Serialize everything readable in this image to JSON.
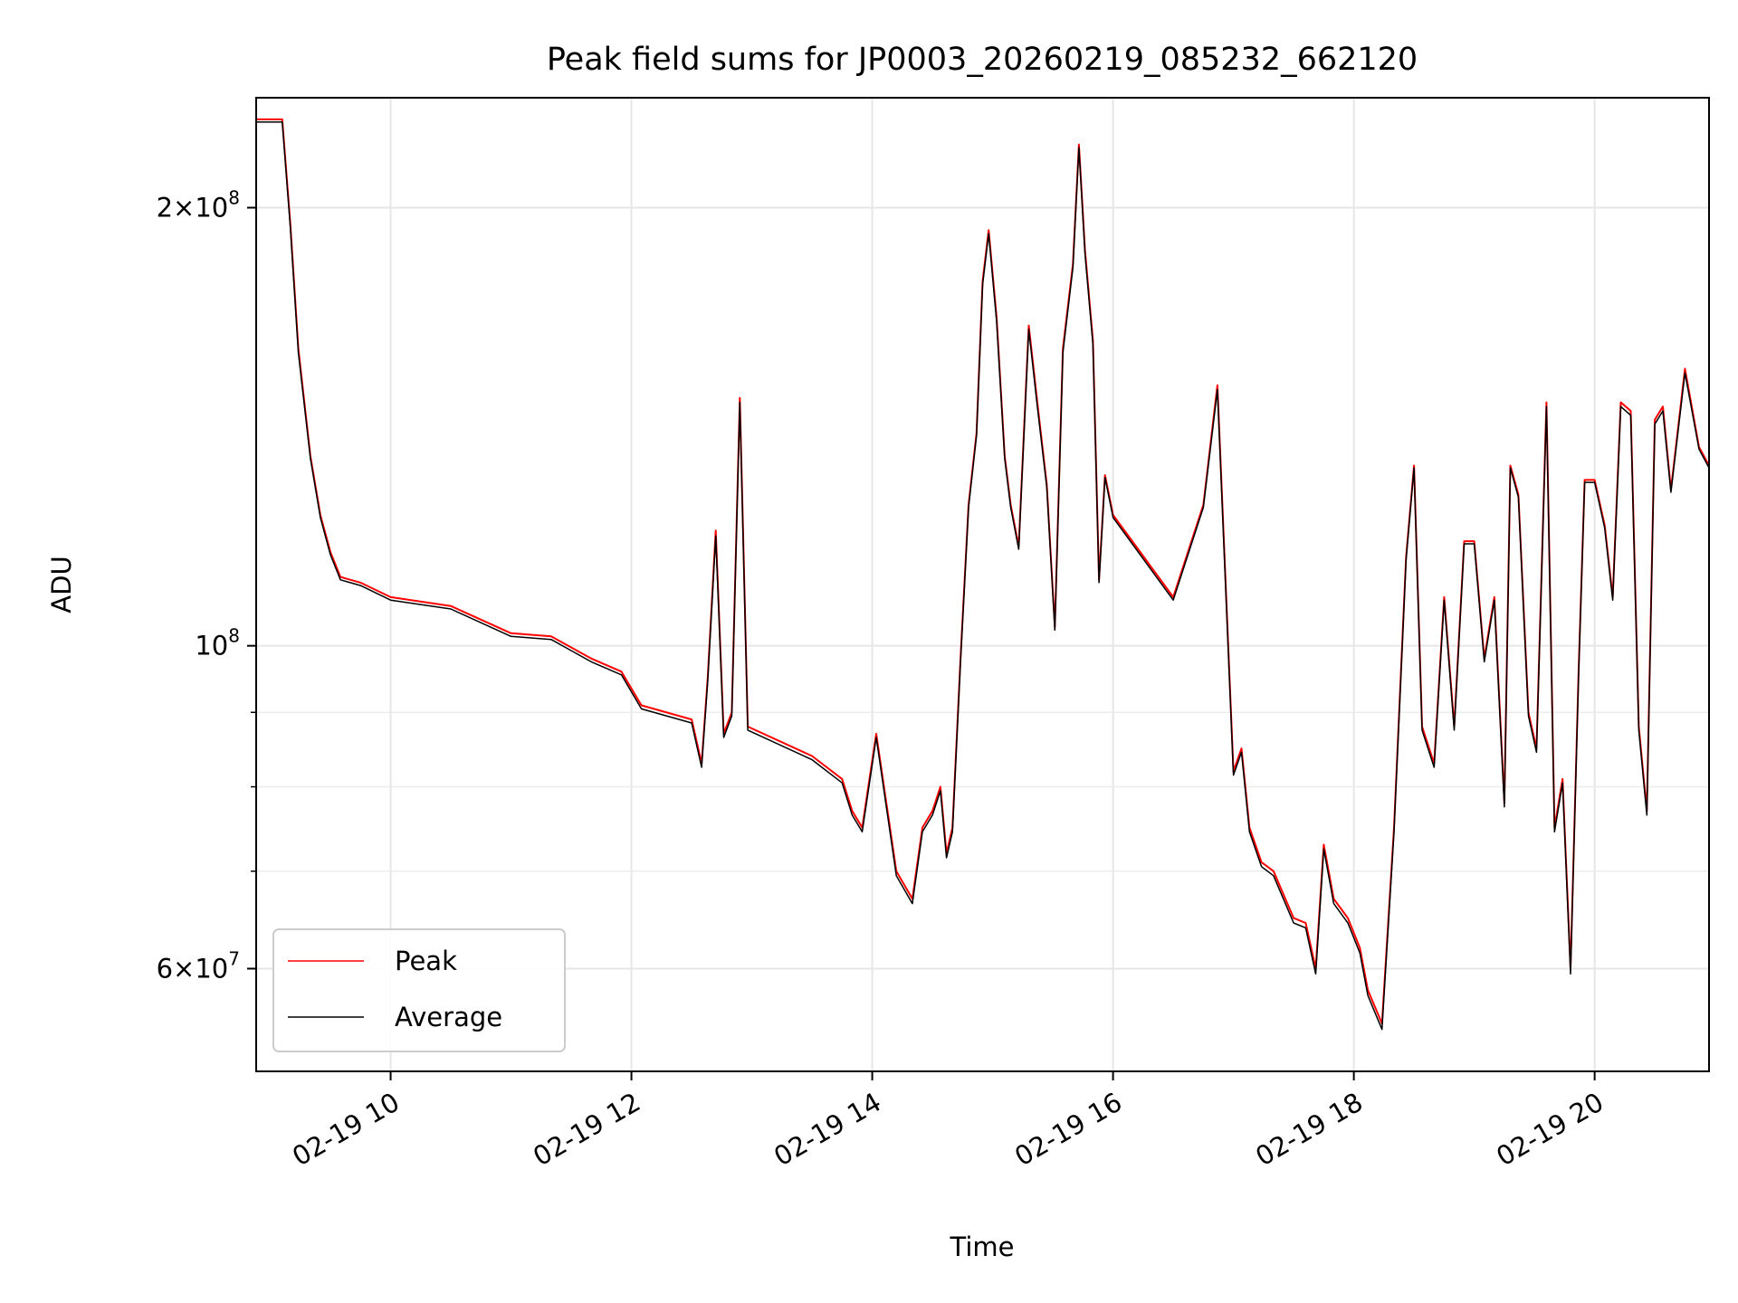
{
  "chart_data": {
    "type": "line",
    "title": "Peak field sums for JP0003_20260219_085232_662120",
    "xlabel": "Time",
    "ylabel": "ADU",
    "y_scale": "log",
    "xlim": [
      "2026-02-19 08:53",
      "2026-02-19 20:57"
    ],
    "ylim": [
      51000000,
      238000000
    ],
    "grid": true,
    "legend_position": "bottom-left",
    "x_ticks": [
      {
        "value": "2026-02-19 10:00",
        "label": "02-19 10"
      },
      {
        "value": "2026-02-19 12:00",
        "label": "02-19 12"
      },
      {
        "value": "2026-02-19 14:00",
        "label": "02-19 14"
      },
      {
        "value": "2026-02-19 16:00",
        "label": "02-19 16"
      },
      {
        "value": "2026-02-19 18:00",
        "label": "02-19 18"
      },
      {
        "value": "2026-02-19 20:00",
        "label": "02-19 20"
      }
    ],
    "y_ticks": [
      {
        "value": 200000000,
        "mantissa": "2",
        "exponent": "8"
      },
      {
        "value": 100000000,
        "mantissa": "",
        "exponent": "8"
      },
      {
        "value": 60000000,
        "mantissa": "6",
        "exponent": "7"
      }
    ],
    "y_minor_ticks": [
      70000000,
      80000000,
      90000000,
      300000000
    ],
    "series": [
      {
        "name": "Peak",
        "color": "#ff0000",
        "x": [
          "2026-02-19 08:53",
          "2026-02-19 09:03",
          "2026-02-19 09:06",
          "2026-02-19 09:10",
          "2026-02-19 09:14",
          "2026-02-19 09:20",
          "2026-02-19 09:25",
          "2026-02-19 09:30",
          "2026-02-19 09:35",
          "2026-02-19 09:45",
          "2026-02-19 10:00",
          "2026-02-19 10:30",
          "2026-02-19 11:00",
          "2026-02-19 11:20",
          "2026-02-19 11:40",
          "2026-02-19 11:55",
          "2026-02-19 12:05",
          "2026-02-19 12:30",
          "2026-02-19 12:35",
          "2026-02-19 12:38",
          "2026-02-19 12:42",
          "2026-02-19 12:46",
          "2026-02-19 12:50",
          "2026-02-19 12:54",
          "2026-02-19 12:58",
          "2026-02-19 13:30",
          "2026-02-19 13:45",
          "2026-02-19 13:50",
          "2026-02-19 13:55",
          "2026-02-19 14:02",
          "2026-02-19 14:12",
          "2026-02-19 14:20",
          "2026-02-19 14:25",
          "2026-02-19 14:30",
          "2026-02-19 14:34",
          "2026-02-19 14:37",
          "2026-02-19 14:40",
          "2026-02-19 14:44",
          "2026-02-19 14:48",
          "2026-02-19 14:52",
          "2026-02-19 14:55",
          "2026-02-19 14:58",
          "2026-02-19 15:02",
          "2026-02-19 15:06",
          "2026-02-19 15:09",
          "2026-02-19 15:13",
          "2026-02-19 15:18",
          "2026-02-19 15:22",
          "2026-02-19 15:27",
          "2026-02-19 15:31",
          "2026-02-19 15:35",
          "2026-02-19 15:40",
          "2026-02-19 15:43",
          "2026-02-19 15:46",
          "2026-02-19 15:50",
          "2026-02-19 15:53",
          "2026-02-19 15:56",
          "2026-02-19 16:00",
          "2026-02-19 16:30",
          "2026-02-19 16:45",
          "2026-02-19 16:52",
          "2026-02-19 17:00",
          "2026-02-19 17:04",
          "2026-02-19 17:08",
          "2026-02-19 17:14",
          "2026-02-19 17:20",
          "2026-02-19 17:30",
          "2026-02-19 17:36",
          "2026-02-19 17:41",
          "2026-02-19 17:45",
          "2026-02-19 17:50",
          "2026-02-19 17:57",
          "2026-02-19 18:03",
          "2026-02-19 18:07",
          "2026-02-19 18:14",
          "2026-02-19 18:20",
          "2026-02-19 18:26",
          "2026-02-19 18:30",
          "2026-02-19 18:34",
          "2026-02-19 18:40",
          "2026-02-19 18:45",
          "2026-02-19 18:50",
          "2026-02-19 18:55",
          "2026-02-19 19:00",
          "2026-02-19 19:05",
          "2026-02-19 19:10",
          "2026-02-19 19:15",
          "2026-02-19 19:18",
          "2026-02-19 19:22",
          "2026-02-19 19:27",
          "2026-02-19 19:31",
          "2026-02-19 19:36",
          "2026-02-19 19:40",
          "2026-02-19 19:44",
          "2026-02-19 19:48",
          "2026-02-19 19:52",
          "2026-02-19 19:55",
          "2026-02-19 20:00",
          "2026-02-19 20:05",
          "2026-02-19 20:09",
          "2026-02-19 20:13",
          "2026-02-19 20:18",
          "2026-02-19 20:22",
          "2026-02-19 20:26",
          "2026-02-19 20:30",
          "2026-02-19 20:34",
          "2026-02-19 20:38",
          "2026-02-19 20:45",
          "2026-02-19 20:52",
          "2026-02-19 20:57"
        ],
        "y": [
          230000000,
          230000000,
          230000000,
          195000000,
          160000000,
          135000000,
          123000000,
          116000000,
          111500000,
          110500000,
          108000000,
          106500000,
          102000000,
          101500000,
          98000000,
          96000000,
          91000000,
          89000000,
          83000000,
          95000000,
          120000000,
          87000000,
          90000000,
          148000000,
          88000000,
          84000000,
          81000000,
          77000000,
          75000000,
          87000000,
          70000000,
          67000000,
          75000000,
          77000000,
          80000000,
          72000000,
          75000000,
          98000000,
          125000000,
          140000000,
          178000000,
          193000000,
          168000000,
          135000000,
          125000000,
          117000000,
          166000000,
          148000000,
          129000000,
          103000000,
          160000000,
          183000000,
          221000000,
          187000000,
          162000000,
          111000000,
          131000000,
          123000000,
          108000000,
          125000000,
          151000000,
          82000000,
          85000000,
          75000000,
          71000000,
          70000000,
          65000000,
          64500000,
          60000000,
          73000000,
          67000000,
          65000000,
          62000000,
          58000000,
          55000000,
          75000000,
          115000000,
          133000000,
          88000000,
          83000000,
          108000000,
          88000000,
          118000000,
          118000000,
          98000000,
          108000000,
          78000000,
          133000000,
          127000000,
          90000000,
          85000000,
          147000000,
          75000000,
          81000000,
          60000000,
          96000000,
          130000000,
          130000000,
          121000000,
          108000000,
          147000000,
          145000000,
          88000000,
          77000000,
          143000000,
          146000000,
          128000000,
          155000000,
          137000000,
          133000000
        ],
        "note": "trace approximated from image"
      },
      {
        "name": "Average",
        "color": "#000000",
        "x": [
          "2026-02-19 08:53",
          "2026-02-19 09:03",
          "2026-02-19 09:06",
          "2026-02-19 09:10",
          "2026-02-19 09:14",
          "2026-02-19 09:20",
          "2026-02-19 09:25",
          "2026-02-19 09:30",
          "2026-02-19 09:35",
          "2026-02-19 09:45",
          "2026-02-19 10:00",
          "2026-02-19 10:30",
          "2026-02-19 11:00",
          "2026-02-19 11:20",
          "2026-02-19 11:40",
          "2026-02-19 11:55",
          "2026-02-19 12:05",
          "2026-02-19 12:30",
          "2026-02-19 12:35",
          "2026-02-19 12:38",
          "2026-02-19 12:42",
          "2026-02-19 12:46",
          "2026-02-19 12:50",
          "2026-02-19 12:54",
          "2026-02-19 12:58",
          "2026-02-19 13:30",
          "2026-02-19 13:45",
          "2026-02-19 13:50",
          "2026-02-19 13:55",
          "2026-02-19 14:02",
          "2026-02-19 14:12",
          "2026-02-19 14:20",
          "2026-02-19 14:25",
          "2026-02-19 14:30",
          "2026-02-19 14:34",
          "2026-02-19 14:37",
          "2026-02-19 14:40",
          "2026-02-19 14:44",
          "2026-02-19 14:48",
          "2026-02-19 14:52",
          "2026-02-19 14:55",
          "2026-02-19 14:58",
          "2026-02-19 15:02",
          "2026-02-19 15:06",
          "2026-02-19 15:09",
          "2026-02-19 15:13",
          "2026-02-19 15:18",
          "2026-02-19 15:22",
          "2026-02-19 15:27",
          "2026-02-19 15:31",
          "2026-02-19 15:35",
          "2026-02-19 15:40",
          "2026-02-19 15:43",
          "2026-02-19 15:46",
          "2026-02-19 15:50",
          "2026-02-19 15:53",
          "2026-02-19 15:56",
          "2026-02-19 16:00",
          "2026-02-19 16:30",
          "2026-02-19 16:45",
          "2026-02-19 16:52",
          "2026-02-19 17:00",
          "2026-02-19 17:04",
          "2026-02-19 17:08",
          "2026-02-19 17:14",
          "2026-02-19 17:20",
          "2026-02-19 17:30",
          "2026-02-19 17:36",
          "2026-02-19 17:41",
          "2026-02-19 17:45",
          "2026-02-19 17:50",
          "2026-02-19 17:57",
          "2026-02-19 18:03",
          "2026-02-19 18:07",
          "2026-02-19 18:14",
          "2026-02-19 18:20",
          "2026-02-19 18:26",
          "2026-02-19 18:30",
          "2026-02-19 18:34",
          "2026-02-19 18:40",
          "2026-02-19 18:45",
          "2026-02-19 18:50",
          "2026-02-19 18:55",
          "2026-02-19 19:00",
          "2026-02-19 19:05",
          "2026-02-19 19:10",
          "2026-02-19 19:15",
          "2026-02-19 19:18",
          "2026-02-19 19:22",
          "2026-02-19 19:27",
          "2026-02-19 19:31",
          "2026-02-19 19:36",
          "2026-02-19 19:40",
          "2026-02-19 19:44",
          "2026-02-19 19:48",
          "2026-02-19 19:52",
          "2026-02-19 19:55",
          "2026-02-19 20:00",
          "2026-02-19 20:05",
          "2026-02-19 20:09",
          "2026-02-19 20:13",
          "2026-02-19 20:18",
          "2026-02-19 20:22",
          "2026-02-19 20:26",
          "2026-02-19 20:30",
          "2026-02-19 20:34",
          "2026-02-19 20:38",
          "2026-02-19 20:45",
          "2026-02-19 20:52",
          "2026-02-19 20:57"
        ],
        "y": [
          229000000,
          229000000,
          229000000,
          194000000,
          159000000,
          134500000,
          122500000,
          115500000,
          111000000,
          110000000,
          107500000,
          106000000,
          101500000,
          101000000,
          97500000,
          95500000,
          90500000,
          88500000,
          82500000,
          94500000,
          119000000,
          86500000,
          89500000,
          147000000,
          87500000,
          83500000,
          80500000,
          76500000,
          74500000,
          86500000,
          69500000,
          66500000,
          74500000,
          76500000,
          79500000,
          71500000,
          74500000,
          97500000,
          124500000,
          139500000,
          177000000,
          192000000,
          167000000,
          134500000,
          124500000,
          116500000,
          165000000,
          147000000,
          128500000,
          102500000,
          159000000,
          182000000,
          220000000,
          186000000,
          161000000,
          110500000,
          130500000,
          122500000,
          107500000,
          124500000,
          150000000,
          81500000,
          84500000,
          74500000,
          70500000,
          69500000,
          64500000,
          64000000,
          59500000,
          72500000,
          66500000,
          64500000,
          61500000,
          57500000,
          54500000,
          74500000,
          114500000,
          132500000,
          87500000,
          82500000,
          107500000,
          87500000,
          117500000,
          117500000,
          97500000,
          107500000,
          77500000,
          132500000,
          126500000,
          89500000,
          84500000,
          146000000,
          74500000,
          80500000,
          59500000,
          95500000,
          129500000,
          129500000,
          120500000,
          107500000,
          146000000,
          144000000,
          87500000,
          76500000,
          142000000,
          145000000,
          127500000,
          154000000,
          136500000,
          132500000
        ],
        "note": "trace approximated from image"
      }
    ]
  }
}
